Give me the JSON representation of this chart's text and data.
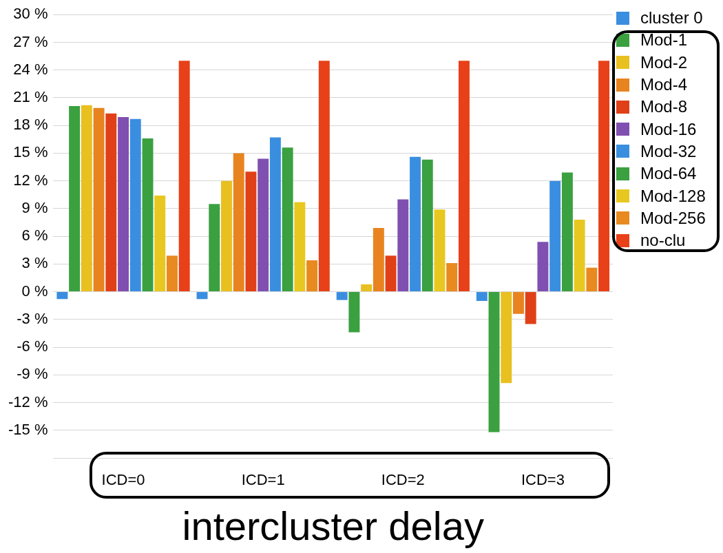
{
  "chart_data": {
    "type": "bar",
    "xlabel": "intercluster delay",
    "categories": [
      "ICD=0",
      "ICD=1",
      "ICD=2",
      "ICD=3"
    ],
    "series": [
      {
        "name": "cluster 0",
        "color": "#3a8ee0",
        "values": [
          -0.8,
          -0.8,
          -0.9,
          -1.0
        ]
      },
      {
        "name": "Mod-1",
        "color": "#3aa040",
        "values": [
          20.1,
          9.5,
          -4.4,
          -15.2
        ]
      },
      {
        "name": "Mod-2",
        "color": "#e8c020",
        "values": [
          20.2,
          12.0,
          0.8,
          -9.9
        ]
      },
      {
        "name": "Mod-4",
        "color": "#e88420",
        "values": [
          19.9,
          15.0,
          6.9,
          -2.4
        ]
      },
      {
        "name": "Mod-8",
        "color": "#e04018",
        "values": [
          19.3,
          13.0,
          3.9,
          -3.5
        ]
      },
      {
        "name": "Mod-16",
        "color": "#8050b0",
        "values": [
          18.9,
          14.4,
          10.0,
          5.4
        ]
      },
      {
        "name": "Mod-32",
        "color": "#3a8ee0",
        "values": [
          18.7,
          16.7,
          14.6,
          12.0
        ]
      },
      {
        "name": "Mod-64",
        "color": "#3aa040",
        "values": [
          16.6,
          15.6,
          14.3,
          12.9
        ]
      },
      {
        "name": "Mod-128",
        "color": "#e8c820",
        "values": [
          10.4,
          9.7,
          8.9,
          7.8
        ]
      },
      {
        "name": "Mod-256",
        "color": "#e88a20",
        "values": [
          3.9,
          3.4,
          3.1,
          2.6
        ]
      },
      {
        "name": "no-clu",
        "color": "#e84018",
        "values": [
          25.0,
          25.0,
          25.0,
          25.0
        ]
      }
    ],
    "ylim": [
      -18,
      30
    ],
    "yticks": [
      {
        "value": -18,
        "label": null
      },
      {
        "value": -15,
        "label": "-15 %"
      },
      {
        "value": -12,
        "label": "-12 %"
      },
      {
        "value": -9,
        "label": "-9 %"
      },
      {
        "value": -6,
        "label": "-6 %"
      },
      {
        "value": -3,
        "label": "-3 %"
      },
      {
        "value": 0,
        "label": "0 %"
      },
      {
        "value": 3,
        "label": "3 %"
      },
      {
        "value": 6,
        "label": "6 %"
      },
      {
        "value": 9,
        "label": "9 %"
      },
      {
        "value": 12,
        "label": "12 %"
      },
      {
        "value": 15,
        "label": "15 %"
      },
      {
        "value": 18,
        "label": "18 %"
      },
      {
        "value": 21,
        "label": "21 %"
      },
      {
        "value": 24,
        "label": "24 %"
      },
      {
        "value": 27,
        "label": "27 %"
      },
      {
        "value": 30,
        "label": "30 %"
      }
    ],
    "grid": "y",
    "legend": "top right"
  }
}
